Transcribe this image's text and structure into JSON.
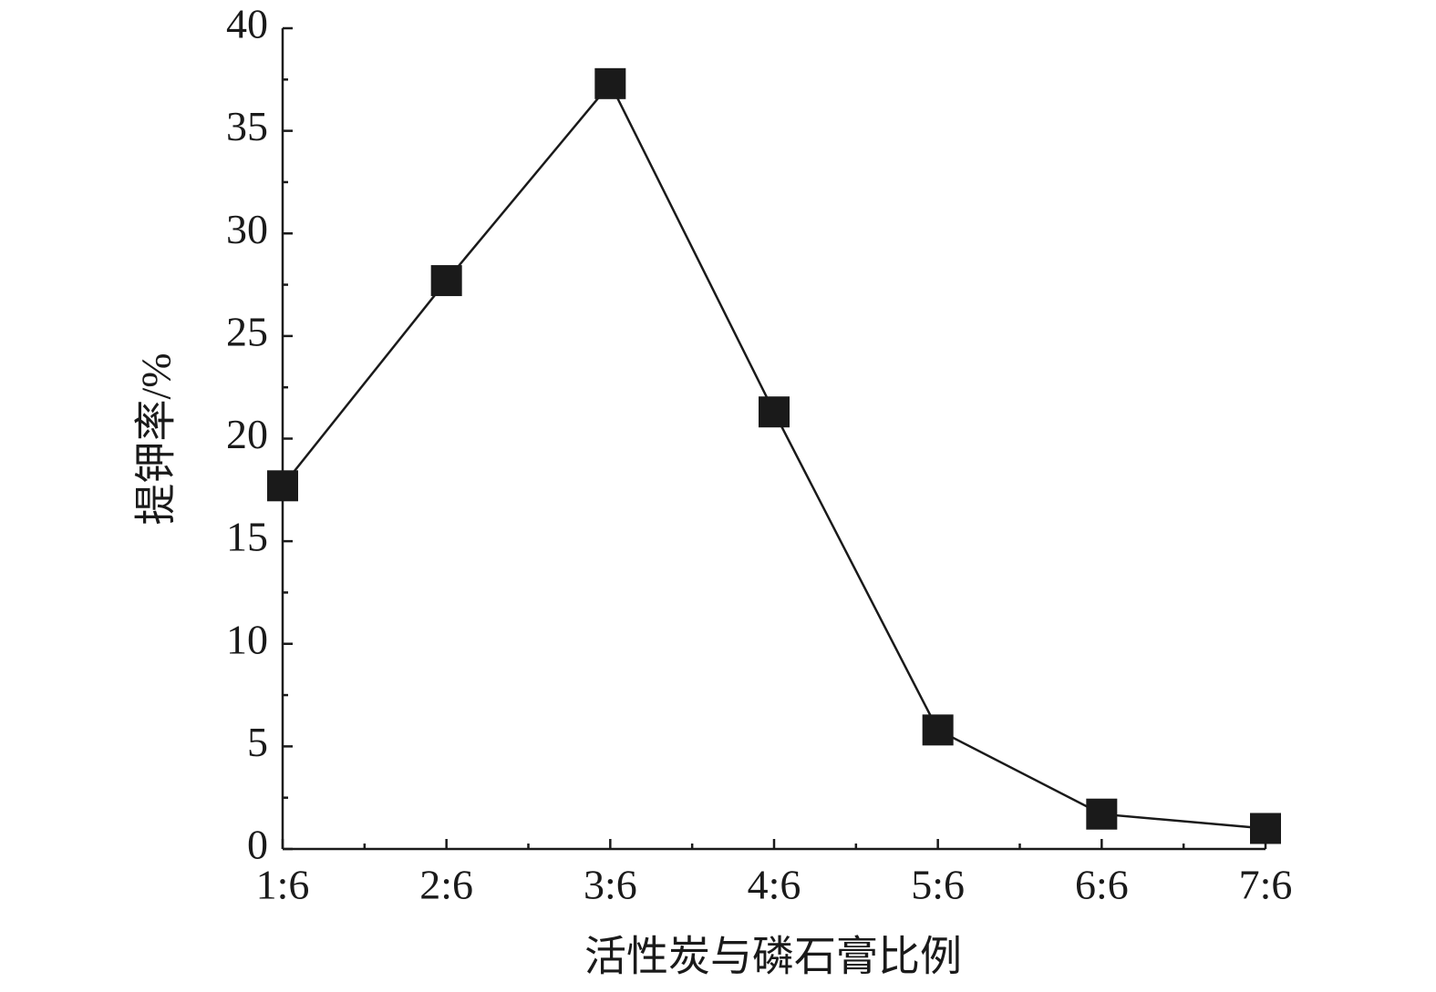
{
  "chart_data": {
    "type": "line",
    "x_label": "活性炭与磷石膏比例",
    "y_label": "提钾率/%",
    "categories": [
      "1:6",
      "2:6",
      "3:6",
      "4:6",
      "5:6",
      "6:6",
      "7:6"
    ],
    "values": [
      17.7,
      27.7,
      37.3,
      21.3,
      5.8,
      1.7,
      1.0
    ],
    "color": "#1a1a1a",
    "marker": "square",
    "ylim": [
      0,
      40
    ],
    "yticks": [
      0,
      5,
      10,
      15,
      20,
      25,
      30,
      35,
      40
    ],
    "grid": false
  }
}
